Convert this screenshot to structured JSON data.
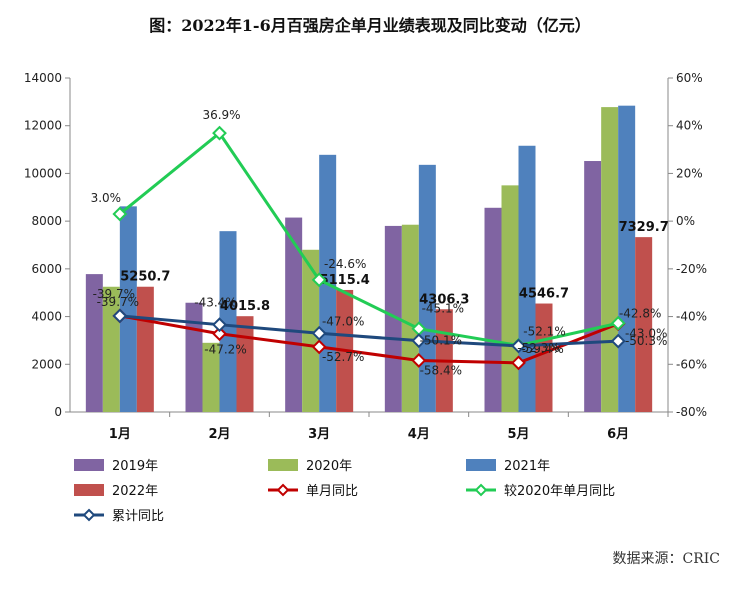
{
  "title": "图：2022年1-6月百强房企单月业绩表现及同比变动（亿元）",
  "source": "数据来源：CRIC",
  "chart_data": {
    "type": "bar",
    "categories": [
      "1月",
      "2月",
      "3月",
      "4月",
      "5月",
      "6月"
    ],
    "y_left": {
      "ticks": [
        "0",
        "2000",
        "4000",
        "6000",
        "8000",
        "10000",
        "12000",
        "14000"
      ],
      "range": [
        0,
        14000
      ]
    },
    "y_right": {
      "ticks": [
        "-80%",
        "-60%",
        "-40%",
        "-20%",
        "0%",
        "20%",
        "40%",
        "60%"
      ],
      "range": [
        -80,
        60
      ]
    },
    "bar_series": [
      {
        "name": "2019年",
        "color": "#8064a2",
        "values": [
          5780,
          4580,
          8150,
          7800,
          8560,
          10520
        ]
      },
      {
        "name": "2020年",
        "color": "#9bbb59",
        "values": [
          5250,
          2900,
          6800,
          7850,
          9500,
          12780
        ]
      },
      {
        "name": "2021年",
        "color": "#4f81bd",
        "values": [
          8620,
          7580,
          10780,
          10360,
          11160,
          12840
        ]
      },
      {
        "name": "2022年",
        "color": "#c0504d",
        "values": [
          5250.7,
          4015.8,
          5115.4,
          4306.3,
          4546.7,
          7329.7
        ],
        "labels": [
          "5250.7",
          "4015.8",
          "5115.4",
          "4306.3",
          "4546.7",
          "7329.7"
        ]
      }
    ],
    "line_series": [
      {
        "name": "单月同比",
        "color": "#c00000",
        "values": [
          -39.7,
          -47.2,
          -52.7,
          -58.4,
          -59.4,
          -43.0
        ],
        "labels": [
          "-39.7%",
          "-47.2%",
          "-52.7%",
          "-58.4%",
          "-59.4%",
          "-43.0%"
        ]
      },
      {
        "name": "较2020年单月同比",
        "color": "#22cc55",
        "values": [
          3.0,
          36.9,
          -24.6,
          -45.1,
          -52.1,
          -42.8
        ],
        "labels": [
          "3.0%",
          "36.9%",
          "-24.6%",
          "-45.1%",
          "-52.1%",
          "-42.8%"
        ]
      },
      {
        "name": "累计同比",
        "color": "#1f497d",
        "values": [
          -39.7,
          -43.4,
          -47.0,
          -50.1,
          -52.3,
          -50.3
        ],
        "labels": [
          "-39.7%",
          "-43.4%",
          "-47.0%",
          "-50.1%",
          "-52.3%",
          "-50.3%"
        ]
      }
    ],
    "legend": {
      "position": "bottom",
      "items": [
        "2019年",
        "2020年",
        "2021年",
        "2022年",
        "单月同比",
        "较2020年单月同比",
        "累计同比"
      ]
    },
    "grid": false
  }
}
